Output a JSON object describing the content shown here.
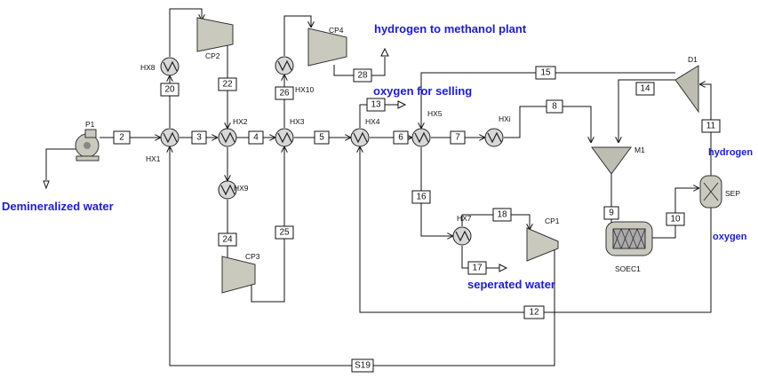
{
  "labels": {
    "feed": "Demineralized water",
    "methanol": "hydrogen to methanol plant",
    "oxygen_selling": "oxygen for selling",
    "hydrogen": "hydrogen",
    "oxygen": "oxygen",
    "sep_water": "seperated water"
  },
  "equipment": {
    "P1": "P1",
    "HX1": "HX1",
    "HX2": "HX2",
    "HX3": "HX3",
    "HX4": "HX4",
    "HX5": "HX5",
    "HXI": "HXi",
    "HX7": "HX7",
    "HX8": "HX8",
    "HX9": "HX9",
    "HX10": "HX10",
    "CP1": "CP1",
    "CP2": "CP2",
    "CP3": "CP3",
    "CP4": "CP4",
    "M1": "M1",
    "D1": "D1",
    "SOEC1": "SOEC1",
    "SEP": "SEP"
  },
  "streams": {
    "s2": "2",
    "s3": "3",
    "s4": "4",
    "s5": "5",
    "s6": "6",
    "s7": "7",
    "s8": "8",
    "s9": "9",
    "s10": "10",
    "s11": "11",
    "s12": "12",
    "s13": "13",
    "s14": "14",
    "s15": "15",
    "s16": "16",
    "s17": "17",
    "s18": "18",
    "s20": "20",
    "s22": "22",
    "s24": "24",
    "s25": "25",
    "s26": "26",
    "s28": "28",
    "sS19": "S19"
  },
  "colors": {
    "accent_text": "#1a1ae6",
    "equipment_fill": "#c9c9bd"
  }
}
